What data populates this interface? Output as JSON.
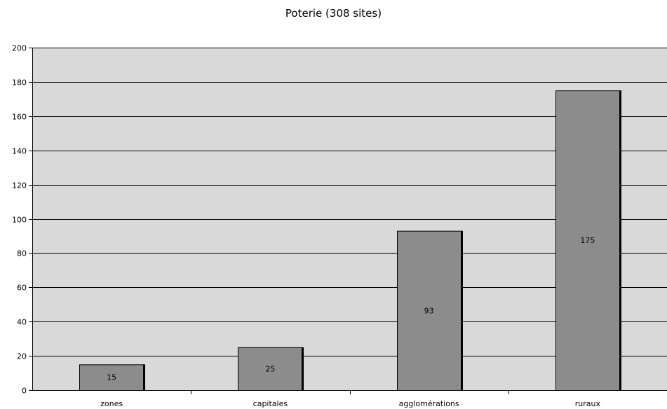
{
  "chart_data": {
    "type": "bar",
    "title": "Poterie (308 sites)",
    "xlabel": "",
    "ylabel": "",
    "categories": [
      "zones",
      "capitales",
      "agglomérations",
      "ruraux"
    ],
    "values": [
      15,
      25,
      93,
      175
    ],
    "data_labels": [
      "15",
      "25",
      "93",
      "175"
    ],
    "ylim": [
      0,
      200
    ],
    "y_ticks": [
      0,
      20,
      40,
      60,
      80,
      100,
      120,
      140,
      160,
      180,
      200
    ],
    "grid": true,
    "legend": "none",
    "colors": {
      "plot_background": "#d9d9d9",
      "bar_fill": "#8c8c8c",
      "bar_shadow": "#000000",
      "gridline": "#000000"
    }
  }
}
